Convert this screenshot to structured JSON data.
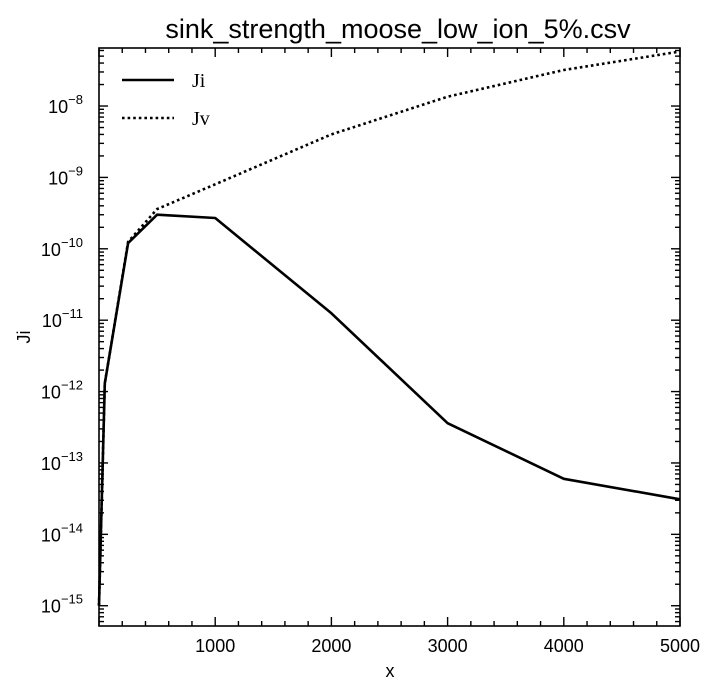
{
  "chart_data": {
    "type": "line",
    "title": "sink_strength_moose_low_ion_5%.csv",
    "xlabel": "x",
    "ylabel": "Ji",
    "xlim": [
      0,
      5000
    ],
    "ylim": [
      5.2e-16,
      6.5e-08
    ],
    "yscale": "log",
    "x_ticks": [
      1000,
      2000,
      3000,
      4000,
      5000
    ],
    "x_tick_labels": [
      "1000",
      "2000",
      "3000",
      "4000",
      "5000"
    ],
    "y_ticks": [
      {
        "value": 1e-15,
        "base": "10",
        "exp": "−15"
      },
      {
        "value": 1e-14,
        "base": "10",
        "exp": "−14"
      },
      {
        "value": 1e-13,
        "base": "10",
        "exp": "−13"
      },
      {
        "value": 1e-12,
        "base": "10",
        "exp": "−12"
      },
      {
        "value": 1e-11,
        "base": "10",
        "exp": "−11"
      },
      {
        "value": 1e-10,
        "base": "10",
        "exp": "−10"
      },
      {
        "value": 1e-09,
        "base": "10",
        "exp": "−9"
      },
      {
        "value": 1e-08,
        "base": "10",
        "exp": "−8"
      }
    ],
    "legend_position": "top-left",
    "grid": false,
    "series": [
      {
        "name": "Ji",
        "style": "solid",
        "color": "#000000",
        "points": [
          [
            0,
            1e-15
          ],
          [
            50,
            1.3e-12
          ],
          [
            250,
            1.2e-10
          ],
          [
            500,
            3e-10
          ],
          [
            1000,
            2.7e-10
          ],
          [
            2000,
            1.25e-11
          ],
          [
            3000,
            3.6e-13
          ],
          [
            4000,
            6e-14
          ],
          [
            5000,
            3.1e-14
          ]
        ]
      },
      {
        "name": "Jv",
        "style": "dotted",
        "color": "#000000",
        "points": [
          [
            0,
            1e-15
          ],
          [
            50,
            1.3e-12
          ],
          [
            250,
            1.25e-10
          ],
          [
            500,
            3.6e-10
          ],
          [
            1000,
            8e-10
          ],
          [
            2000,
            4e-09
          ],
          [
            3000,
            1.35e-08
          ],
          [
            4000,
            3.2e-08
          ],
          [
            5000,
            5.8e-08
          ]
        ]
      }
    ]
  }
}
